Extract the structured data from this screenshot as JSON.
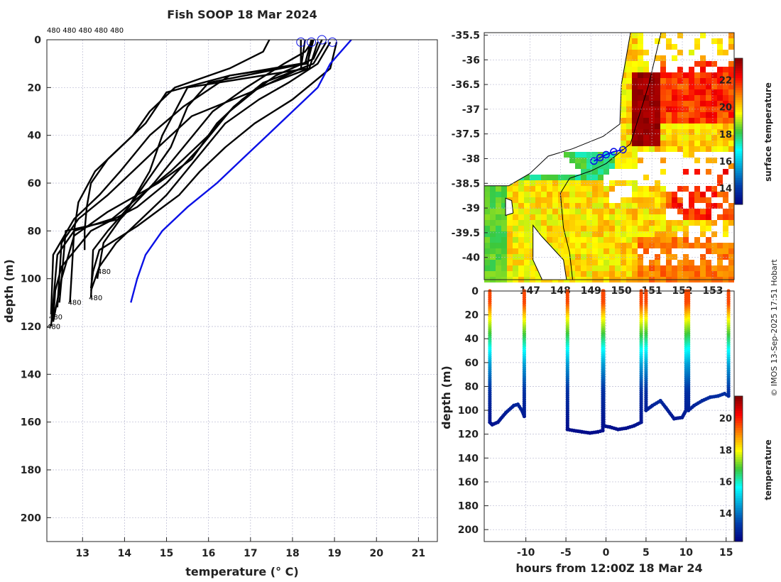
{
  "title": "Fish SOOP 18 Mar 2024",
  "copyright": "© IMOS 13-Sep-2025 17:51 Hobart",
  "colors": {
    "profile": "#000000",
    "highlight": "#0a10e6",
    "grid": "#b8b8d0"
  },
  "chart_data": [
    {
      "type": "line",
      "name": "temperature-profiles",
      "xlabel": "temperature (° C)",
      "ylabel": "depth (m)",
      "xlim": [
        12.15,
        21.45
      ],
      "ylim": [
        210,
        0
      ],
      "xticks": [
        13,
        14,
        15,
        16,
        17,
        18,
        19,
        20,
        21
      ],
      "yticks": [
        0,
        20,
        40,
        60,
        80,
        100,
        120,
        140,
        160,
        180,
        200
      ],
      "top_labels": "480 480 480 480 480",
      "end_labels": [
        {
          "t": 13.35,
          "d": 98,
          "text": "480"
        },
        {
          "t": 13.15,
          "d": 109,
          "text": "480"
        },
        {
          "t": 12.65,
          "d": 111,
          "text": "480"
        },
        {
          "t": 12.2,
          "d": 117,
          "text": "480"
        },
        {
          "t": 12.15,
          "d": 121,
          "text": "480"
        }
      ],
      "surface_markers": [
        {
          "t": 18.2,
          "d": 1
        },
        {
          "t": 18.45,
          "d": 1
        },
        {
          "t": 18.7,
          "d": 0
        },
        {
          "t": 18.95,
          "d": 1
        }
      ],
      "series": [
        {
          "name": "profile-1",
          "temps": [
            17.45,
            17.3,
            16.5,
            15.2,
            14.6,
            14.2,
            13.6,
            13.2,
            13.1,
            13.05,
            13.05
          ],
          "depths": [
            0,
            5,
            12,
            20,
            30,
            40,
            50,
            60,
            70,
            80,
            88
          ]
        },
        {
          "name": "profile-2",
          "temps": [
            18.5,
            18.35,
            16.5,
            15.0,
            14.5,
            13.9,
            13.3,
            12.9,
            12.8,
            12.75,
            12.7
          ],
          "depths": [
            0,
            10,
            15,
            22,
            35,
            45,
            55,
            68,
            80,
            95,
            110
          ]
        },
        {
          "name": "profile-3",
          "temps": [
            18.45,
            18.35,
            15.5,
            15.2,
            14.9,
            14.6,
            14.1,
            13.6,
            13.25,
            13.2
          ],
          "depths": [
            0,
            12,
            20,
            30,
            40,
            55,
            70,
            80,
            88,
            108
          ]
        },
        {
          "name": "profile-4",
          "temps": [
            18.45,
            18.3,
            16.0,
            15.5,
            15.1,
            14.5,
            13.9,
            12.6,
            12.55,
            12.45
          ],
          "depths": [
            0,
            10,
            18,
            28,
            45,
            60,
            75,
            80,
            90,
            110
          ]
        },
        {
          "name": "profile-5",
          "temps": [
            18.6,
            18.4,
            17.2,
            16.5,
            15.8,
            15.0,
            14.3,
            13.2,
            12.5,
            12.35,
            12.3
          ],
          "depths": [
            1,
            12,
            20,
            30,
            45,
            60,
            70,
            80,
            95,
            105,
            118
          ]
        },
        {
          "name": "profile-6",
          "temps": [
            18.7,
            18.5,
            17.6,
            16.8,
            16.2,
            15.6,
            14.8,
            13.6,
            12.8,
            12.5,
            12.3
          ],
          "depths": [
            0,
            8,
            15,
            25,
            35,
            50,
            60,
            72,
            82,
            100,
            118
          ]
        },
        {
          "name": "profile-7",
          "temps": [
            18.5,
            18.3,
            17.8,
            16.9,
            16.1,
            15.4,
            14.7,
            13.9,
            13.5,
            13.4,
            13.35
          ],
          "depths": [
            0,
            5,
            10,
            20,
            30,
            45,
            60,
            75,
            85,
            95,
            100
          ]
        },
        {
          "name": "profile-8",
          "temps": [
            18.9,
            18.6,
            17.9,
            17.2,
            16.4,
            15.7,
            15.0,
            14.4,
            13.8,
            13.4,
            13.2
          ],
          "depths": [
            1,
            10,
            18,
            25,
            35,
            50,
            65,
            75,
            85,
            95,
            105
          ]
        },
        {
          "name": "profile-9",
          "temps": [
            19.05,
            18.9,
            18.0,
            17.1,
            16.4,
            15.8,
            15.3,
            14.3,
            13.4,
            13.25,
            13.2
          ],
          "depths": [
            1,
            12,
            25,
            35,
            45,
            55,
            65,
            78,
            88,
            97,
            104
          ]
        },
        {
          "name": "profile-10",
          "temps": [
            18.8,
            18.5,
            17.3,
            16.6,
            16.0,
            15.1,
            14.4,
            13.7,
            12.8,
            12.4,
            12.3,
            12.25
          ],
          "depths": [
            1,
            10,
            18,
            28,
            40,
            55,
            65,
            75,
            80,
            90,
            110,
            120
          ]
        },
        {
          "name": "profile-11",
          "temps": [
            18.3,
            18.2,
            17.0,
            15.6,
            14.8,
            14.2,
            13.6,
            12.9,
            12.5,
            12.4
          ],
          "depths": [
            0,
            12,
            22,
            32,
            45,
            55,
            65,
            75,
            85,
            112
          ]
        },
        {
          "name": "profile-12",
          "temps": [
            18.2,
            18.2,
            16.5,
            15.4,
            14.6,
            13.9,
            13.4,
            12.8,
            12.3,
            12.25
          ],
          "depths": [
            0,
            10,
            15,
            28,
            40,
            55,
            65,
            75,
            90,
            115
          ]
        }
      ],
      "highlight_series": {
        "name": "climatology",
        "temps": [
          19.4,
          18.9,
          18.6,
          18.0,
          17.4,
          16.8,
          16.2,
          15.5,
          14.9,
          14.5,
          14.3,
          14.15
        ],
        "depths": [
          0,
          10,
          20,
          30,
          40,
          50,
          60,
          70,
          80,
          90,
          100,
          110
        ]
      }
    },
    {
      "type": "heatmap",
      "name": "sst-map",
      "xlim": [
        145.5,
        153.7
      ],
      "ylim": [
        -40.45,
        -35.45
      ],
      "yticks": [
        -35.5,
        -36,
        -36.5,
        -37,
        -37.5,
        -38,
        -38.5,
        -39,
        -39.5,
        -40
      ],
      "ytick_labels": [
        "-35.5",
        "-36",
        "-36.5",
        "-37",
        "-37.5",
        "-38",
        "-38.5",
        "-39",
        "-39.5",
        "-40"
      ],
      "xticks": [
        147,
        148,
        149,
        150,
        151,
        152,
        153
      ],
      "xtick_labels": [
        "147",
        "148",
        "149",
        "150",
        "151",
        "152",
        "153"
      ],
      "colorbar_label": "surface temperature",
      "colorbar_ticks": [
        14,
        16,
        18,
        20,
        22
      ],
      "colorbar_range": [
        12.8,
        23.6
      ],
      "track": [
        {
          "lon": 149.1,
          "lat": -38.05
        },
        {
          "lon": 149.3,
          "lat": -37.98
        },
        {
          "lon": 149.5,
          "lat": -37.92
        },
        {
          "lon": 149.75,
          "lat": -37.86
        },
        {
          "lon": 150.05,
          "lat": -37.82
        }
      ]
    },
    {
      "type": "scatter",
      "name": "depth-time-section",
      "xlabel": "hours from 12:00Z 18 Mar 24",
      "ylabel": "depth (m)",
      "xlim": [
        -15.2,
        16
      ],
      "ylim": [
        210,
        0
      ],
      "xticks": [
        -10,
        -5,
        0,
        5,
        10,
        15
      ],
      "yticks": [
        0,
        20,
        40,
        60,
        80,
        100,
        120,
        140,
        160,
        180,
        200
      ],
      "colorbar_label": "temperature",
      "colorbar_ticks": [
        14,
        16,
        18,
        20
      ],
      "colorbar_range": [
        12.2,
        21.4
      ],
      "casts": [
        {
          "hours": [
            -14.5,
            -14.5,
            -14.2,
            -13.5,
            -12.5,
            -11.5,
            -11.0,
            -10.5,
            -10.2,
            -10.2
          ],
          "depths": [
            0,
            110,
            112,
            110,
            102,
            96,
            95,
            100,
            105,
            0
          ]
        },
        {
          "hours": [
            -4.8,
            -4.8,
            -4.0,
            -3.0,
            -2.0,
            -1.0,
            -0.4,
            -0.4
          ],
          "depths": [
            0,
            116,
            117,
            118,
            119,
            118,
            117,
            0
          ]
        },
        {
          "hours": [
            -0.3,
            -0.3,
            0.5,
            1.5,
            2.5,
            3.5,
            4.4,
            4.4
          ],
          "depths": [
            0,
            113,
            114,
            116,
            115,
            113,
            110,
            0
          ]
        },
        {
          "hours": [
            5.0,
            5.0,
            5.8,
            6.8,
            7.5,
            8.5,
            9.5,
            10.0,
            10.0
          ],
          "depths": [
            0,
            100,
            96,
            92,
            98,
            107,
            106,
            100,
            0
          ]
        },
        {
          "hours": [
            10.3,
            10.3,
            11.0,
            12.0,
            13.0,
            14.0,
            14.8,
            15.3,
            15.3
          ],
          "depths": [
            0,
            100,
            96,
            92,
            89,
            88,
            86,
            88,
            0
          ]
        }
      ]
    }
  ]
}
